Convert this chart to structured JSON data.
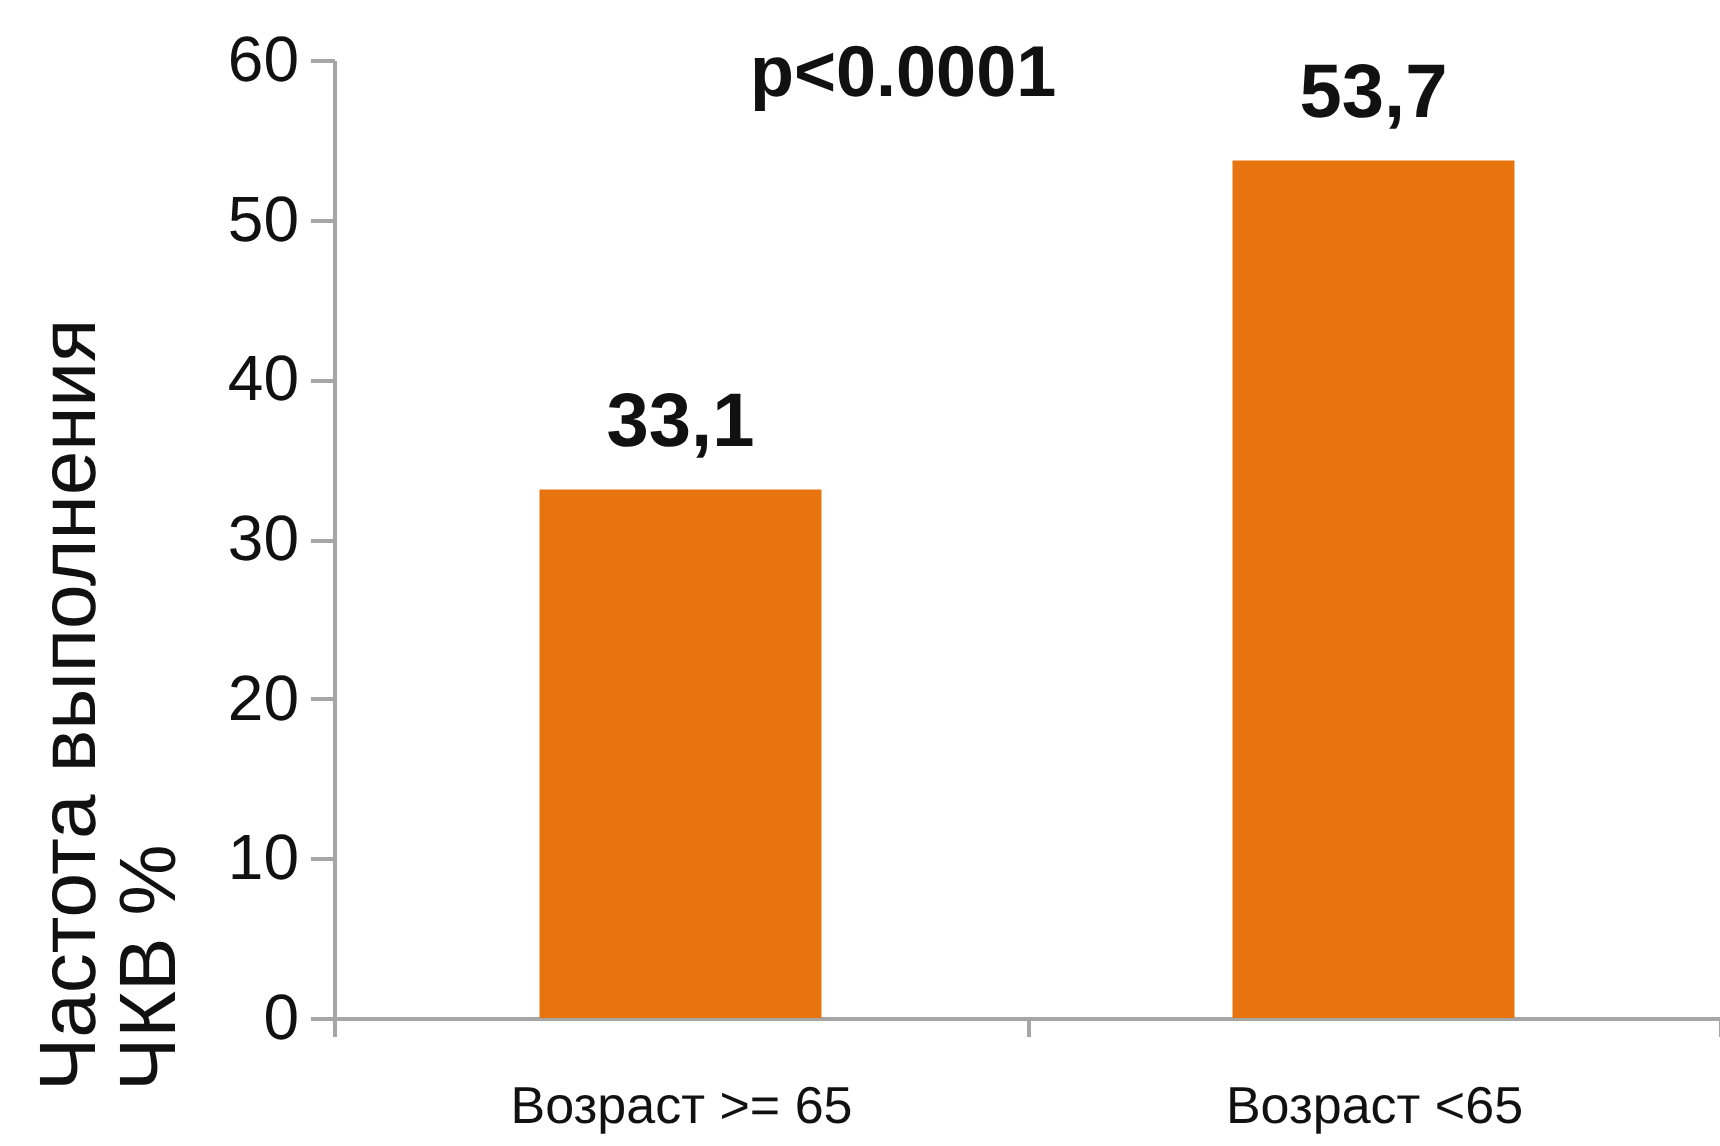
{
  "chart_data": {
    "type": "bar",
    "categories": [
      "Возраст >= 65",
      "Возраст <65"
    ],
    "values": [
      33.1,
      53.7
    ],
    "value_labels": [
      "33,1",
      "53,7"
    ],
    "color": "#e8740f",
    "ylabel": "Частота выполнения ЧКВ %",
    "ylim": [
      0,
      60
    ],
    "yticks": [
      0,
      10,
      20,
      30,
      40,
      50,
      60
    ],
    "annotations": [
      "p<0.0001"
    ]
  }
}
